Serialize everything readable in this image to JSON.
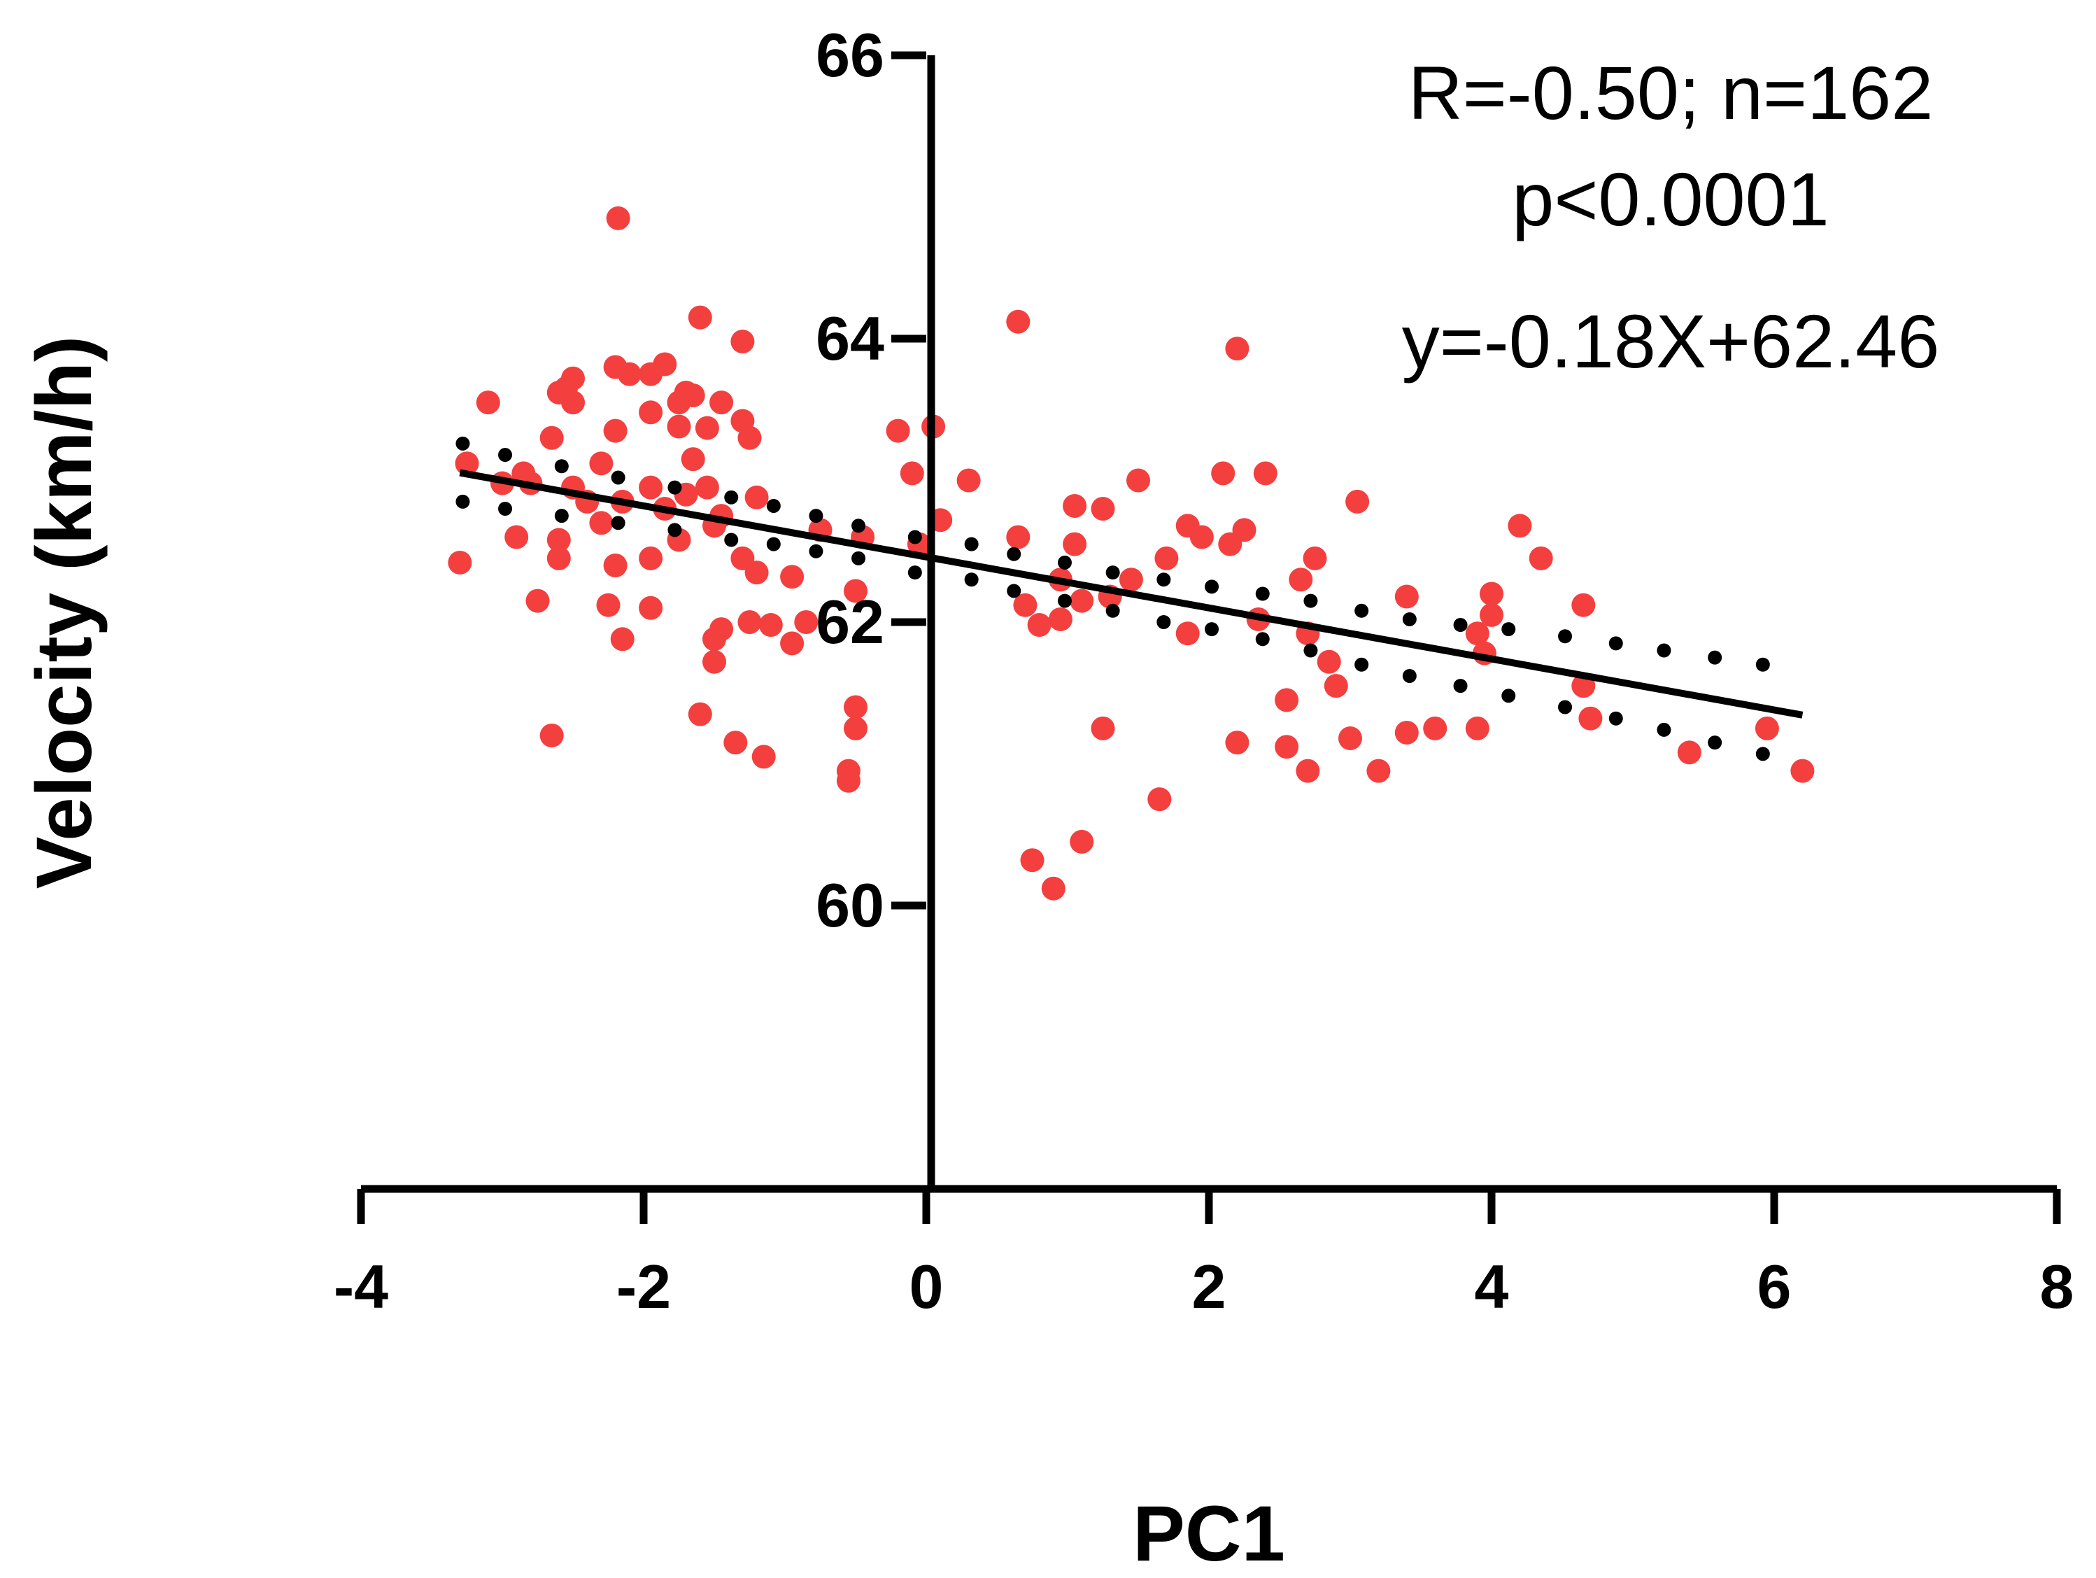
{
  "chart_data": {
    "type": "scatter",
    "title": "",
    "xlabel": "PC1",
    "ylabel": "Velocity (km/h)",
    "xlim": [
      -4,
      8
    ],
    "ylim": [
      58,
      66
    ],
    "x_ticks": [
      -4,
      -2,
      0,
      2,
      4,
      6,
      8
    ],
    "x_tick_labels": [
      "-4",
      "-2",
      "0",
      "2",
      "4",
      "6",
      "8"
    ],
    "y_ticks": [
      60,
      62,
      64,
      66
    ],
    "y_tick_labels": [
      "60",
      "62",
      "64",
      "66"
    ],
    "grid": false,
    "annotations": [
      "R=-0.50; n=162",
      "p<0.0001",
      "y=-0.18X+62.46"
    ],
    "colors": {
      "observed": "#f43f3f",
      "predicted": "#000000",
      "line": "#000000"
    },
    "fit_line": {
      "slope": -0.18,
      "intercept": 62.46,
      "x_range": [
        -3.3,
        6.2
      ]
    },
    "series": [
      {
        "name": "observed",
        "points": [
          [
            -2.18,
            64.85
          ],
          [
            -1.6,
            64.15
          ],
          [
            -1.3,
            63.98
          ],
          [
            0.65,
            64.12
          ],
          [
            2.2,
            63.93
          ],
          [
            -2.2,
            63.8
          ],
          [
            -2.1,
            63.75
          ],
          [
            -1.85,
            63.82
          ],
          [
            -1.95,
            63.75
          ],
          [
            -2.5,
            63.72
          ],
          [
            -2.55,
            63.65
          ],
          [
            -2.6,
            63.62
          ],
          [
            -3.1,
            63.55
          ],
          [
            -2.5,
            63.55
          ],
          [
            -1.7,
            63.62
          ],
          [
            -1.65,
            63.6
          ],
          [
            -1.75,
            63.55
          ],
          [
            -1.45,
            63.55
          ],
          [
            -1.95,
            63.48
          ],
          [
            -1.3,
            63.42
          ],
          [
            -1.75,
            63.38
          ],
          [
            -2.2,
            63.35
          ],
          [
            -1.55,
            63.37
          ],
          [
            -1.25,
            63.3
          ],
          [
            -2.65,
            63.3
          ],
          [
            -0.2,
            63.35
          ],
          [
            0.05,
            63.38
          ],
          [
            -3.25,
            63.12
          ],
          [
            -2.85,
            63.05
          ],
          [
            -2.3,
            63.12
          ],
          [
            -1.65,
            63.15
          ],
          [
            -0.1,
            63.05
          ],
          [
            0.3,
            63.0
          ],
          [
            1.5,
            63.0
          ],
          [
            2.1,
            63.05
          ],
          [
            2.4,
            63.05
          ],
          [
            -3.0,
            62.98
          ],
          [
            -2.8,
            62.98
          ],
          [
            -2.5,
            62.95
          ],
          [
            -1.95,
            62.95
          ],
          [
            -1.55,
            62.95
          ],
          [
            -1.7,
            62.9
          ],
          [
            -1.2,
            62.88
          ],
          [
            -2.4,
            62.85
          ],
          [
            -2.15,
            62.85
          ],
          [
            -1.85,
            62.8
          ],
          [
            -1.45,
            62.75
          ],
          [
            0.1,
            62.72
          ],
          [
            1.05,
            62.82
          ],
          [
            1.25,
            62.8
          ],
          [
            3.05,
            62.85
          ],
          [
            -2.3,
            62.7
          ],
          [
            -1.5,
            62.68
          ],
          [
            -0.75,
            62.65
          ],
          [
            1.85,
            62.68
          ],
          [
            2.25,
            62.65
          ],
          [
            4.2,
            62.68
          ],
          [
            1.95,
            62.6
          ],
          [
            -2.9,
            62.6
          ],
          [
            -2.6,
            62.58
          ],
          [
            -1.75,
            62.58
          ],
          [
            -0.45,
            62.6
          ],
          [
            -0.05,
            62.55
          ],
          [
            0.65,
            62.6
          ],
          [
            1.05,
            62.55
          ],
          [
            2.15,
            62.55
          ],
          [
            -3.3,
            62.42
          ],
          [
            -2.6,
            62.45
          ],
          [
            -2.2,
            62.4
          ],
          [
            -1.95,
            62.45
          ],
          [
            -1.3,
            62.45
          ],
          [
            -1.2,
            62.35
          ],
          [
            1.7,
            62.45
          ],
          [
            2.75,
            62.45
          ],
          [
            4.35,
            62.45
          ],
          [
            -0.95,
            62.32
          ],
          [
            0.95,
            62.3
          ],
          [
            1.45,
            62.3
          ],
          [
            -2.75,
            62.15
          ],
          [
            -2.25,
            62.12
          ],
          [
            -1.95,
            62.1
          ],
          [
            2.65,
            62.3
          ],
          [
            3.4,
            62.18
          ],
          [
            4.0,
            62.2
          ],
          [
            -0.5,
            62.22
          ],
          [
            0.7,
            62.12
          ],
          [
            1.1,
            62.15
          ],
          [
            1.3,
            62.18
          ],
          [
            4.65,
            62.12
          ],
          [
            -1.45,
            61.95
          ],
          [
            -1.25,
            62.0
          ],
          [
            -1.1,
            61.98
          ],
          [
            -0.85,
            62.0
          ],
          [
            0.8,
            61.98
          ],
          [
            0.95,
            62.02
          ],
          [
            2.35,
            62.02
          ],
          [
            4.0,
            62.05
          ],
          [
            -2.15,
            61.88
          ],
          [
            -1.5,
            61.88
          ],
          [
            -0.95,
            61.85
          ],
          [
            1.85,
            61.92
          ],
          [
            2.7,
            61.92
          ],
          [
            3.9,
            61.92
          ],
          [
            -1.5,
            61.72
          ],
          [
            2.85,
            61.72
          ],
          [
            3.95,
            61.78
          ],
          [
            -0.5,
            61.4
          ],
          [
            -1.6,
            61.35
          ],
          [
            2.55,
            61.45
          ],
          [
            2.9,
            61.55
          ],
          [
            4.65,
            61.55
          ],
          [
            -2.65,
            61.2
          ],
          [
            -0.5,
            61.25
          ],
          [
            -1.35,
            61.15
          ],
          [
            1.25,
            61.25
          ],
          [
            2.2,
            61.15
          ],
          [
            2.55,
            61.12
          ],
          [
            3.0,
            61.18
          ],
          [
            3.4,
            61.22
          ],
          [
            3.6,
            61.25
          ],
          [
            3.9,
            61.25
          ],
          [
            4.7,
            61.32
          ],
          [
            5.95,
            61.25
          ],
          [
            -1.15,
            61.05
          ],
          [
            -0.55,
            60.95
          ],
          [
            -0.55,
            60.88
          ],
          [
            2.7,
            60.95
          ],
          [
            3.2,
            60.95
          ],
          [
            5.4,
            61.08
          ],
          [
            6.2,
            60.95
          ],
          [
            1.65,
            60.75
          ],
          [
            1.1,
            60.45
          ],
          [
            0.75,
            60.32
          ],
          [
            0.9,
            60.12
          ]
        ]
      },
      {
        "name": "predicted",
        "points": [
          [
            -3.28,
            63.26
          ],
          [
            -3.28,
            62.85
          ],
          [
            -2.98,
            63.18
          ],
          [
            -2.98,
            62.8
          ],
          [
            -2.58,
            63.1
          ],
          [
            -2.58,
            62.75
          ],
          [
            -2.18,
            63.02
          ],
          [
            -2.18,
            62.7
          ],
          [
            -1.78,
            62.95
          ],
          [
            -1.78,
            62.65
          ],
          [
            -1.38,
            62.88
          ],
          [
            -1.38,
            62.58
          ],
          [
            -1.08,
            62.82
          ],
          [
            -1.08,
            62.55
          ],
          [
            -0.78,
            62.75
          ],
          [
            -0.78,
            62.5
          ],
          [
            -0.48,
            62.68
          ],
          [
            -0.48,
            62.45
          ],
          [
            -0.08,
            62.6
          ],
          [
            -0.08,
            62.35
          ],
          [
            0.32,
            62.55
          ],
          [
            0.32,
            62.3
          ],
          [
            0.62,
            62.48
          ],
          [
            0.62,
            62.22
          ],
          [
            0.98,
            62.42
          ],
          [
            0.98,
            62.15
          ],
          [
            1.32,
            62.35
          ],
          [
            1.32,
            62.08
          ],
          [
            1.68,
            62.3
          ],
          [
            1.68,
            62.0
          ],
          [
            2.02,
            62.25
          ],
          [
            2.02,
            61.95
          ],
          [
            2.38,
            62.2
          ],
          [
            2.38,
            61.88
          ],
          [
            2.72,
            62.15
          ],
          [
            2.72,
            61.8
          ],
          [
            3.08,
            62.08
          ],
          [
            3.08,
            61.7
          ],
          [
            3.42,
            62.02
          ],
          [
            3.42,
            61.62
          ],
          [
            3.78,
            61.98
          ],
          [
            3.78,
            61.55
          ],
          [
            4.12,
            61.95
          ],
          [
            4.12,
            61.48
          ],
          [
            4.52,
            61.9
          ],
          [
            4.52,
            61.4
          ],
          [
            4.88,
            61.85
          ],
          [
            4.88,
            61.32
          ],
          [
            5.22,
            61.8
          ],
          [
            5.22,
            61.24
          ],
          [
            5.58,
            61.75
          ],
          [
            5.58,
            61.15
          ],
          [
            5.92,
            61.7
          ],
          [
            5.92,
            61.07
          ]
        ]
      }
    ]
  }
}
